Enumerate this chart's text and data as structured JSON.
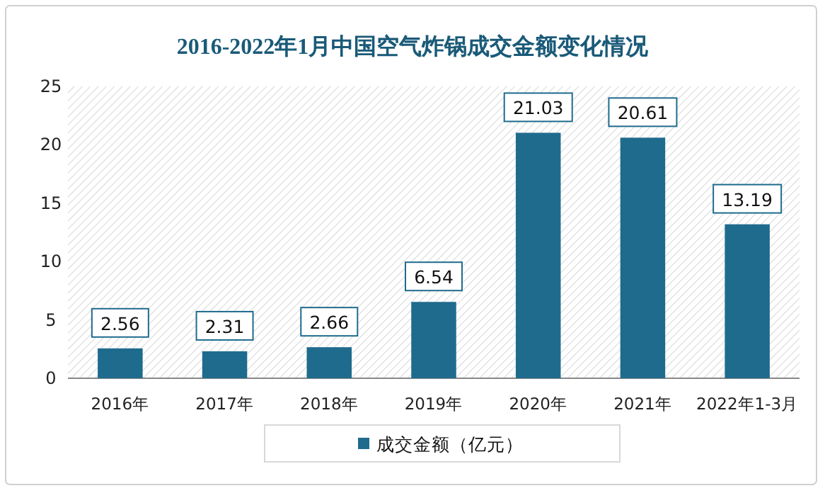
{
  "chart_data": {
    "type": "bar",
    "title": "2016-2022年1月中国空气炸锅成交金额变化情况",
    "categories": [
      "2016年",
      "2017年",
      "2018年",
      "2019年",
      "2020年",
      "2021年",
      "2022年1-3月"
    ],
    "series": [
      {
        "name": "成交金额（亿元）",
        "color": "#1f6b8e",
        "values": [
          2.56,
          2.31,
          2.66,
          6.54,
          21.03,
          20.61,
          13.19
        ]
      }
    ],
    "ylim": [
      0,
      25
    ],
    "yticks": [
      0,
      5,
      10,
      15,
      20,
      25
    ],
    "data_labels": true,
    "legend": "bottom"
  }
}
